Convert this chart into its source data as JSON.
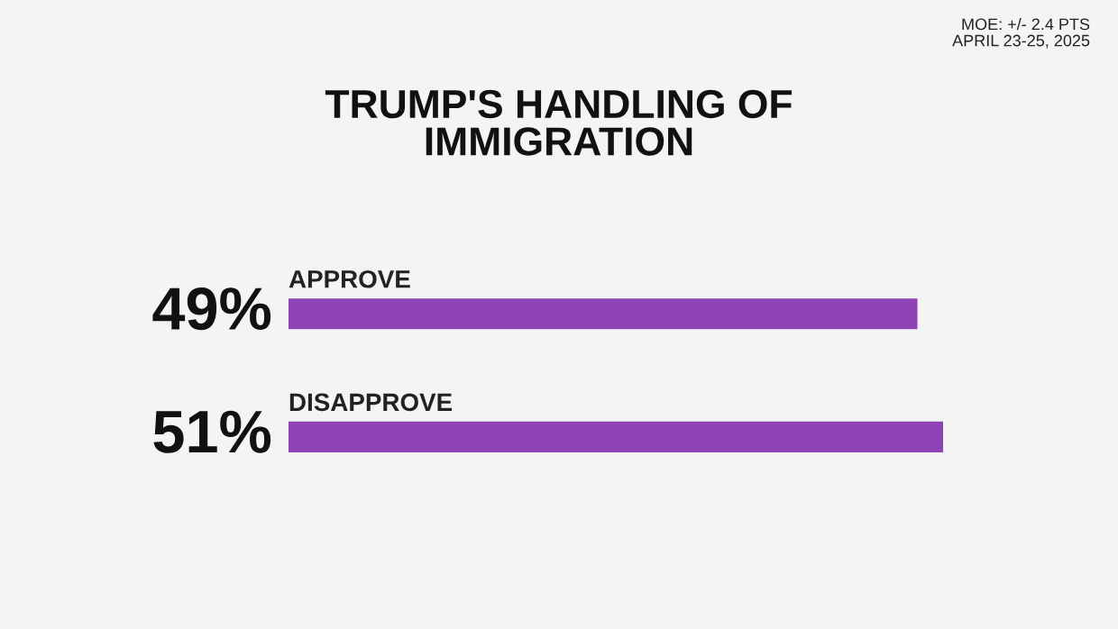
{
  "chart_data": {
    "type": "bar",
    "orientation": "horizontal",
    "title": "TRUMP'S HANDLING OF\nIMMIGRATION",
    "categories": [
      "APPROVE",
      "DISAPPROVE"
    ],
    "values": [
      49,
      51
    ],
    "value_labels": [
      "49%",
      "51%"
    ],
    "color": "#8e44b5",
    "annotations": [
      "MOE: +/- 2.4 PTS\nAPRIL 23-25, 2025"
    ]
  }
}
